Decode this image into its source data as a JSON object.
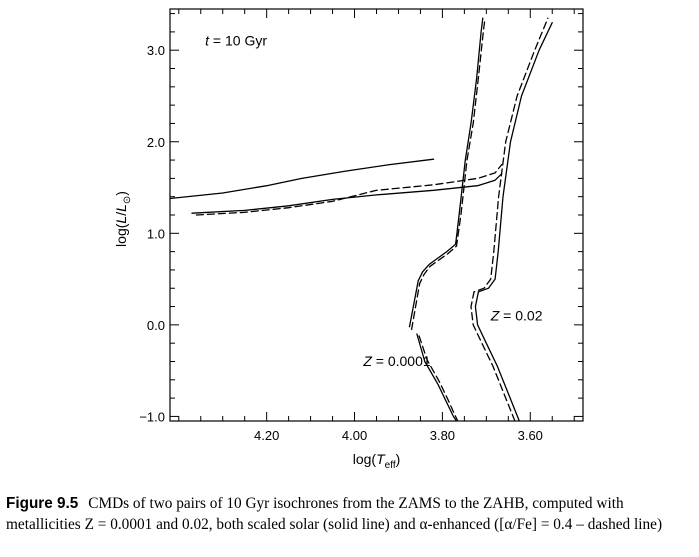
{
  "caption": {
    "label": "Figure 9.5",
    "text": "CMDs of two pairs of 10 Gyr isochrones from the ZAMS to the ZAHB, computed with metallicities Z = 0.0001 and 0.02, both scaled solar (solid line) and α-enhanced ([α/Fe] = 0.4 – dashed line)"
  },
  "chart_data": {
    "type": "line",
    "xlabel": "log(T_eff)",
    "ylabel": "log(L/L_⊙)",
    "xlim": [
      4.42,
      3.48
    ],
    "ylim": [
      -1.05,
      3.45
    ],
    "x_reversed": true,
    "x_ticks": [
      4.2,
      4.0,
      3.8,
      3.6
    ],
    "x_tick_labels": [
      "4.20",
      "4.00",
      "3.80",
      "3.60"
    ],
    "y_ticks": [
      -1.0,
      0.0,
      1.0,
      2.0,
      3.0
    ],
    "y_tick_labels": [
      "−1.0",
      "0.0",
      "1.0",
      "2.0",
      "3.0"
    ],
    "x_minor_step": 0.05,
    "y_minor_step": 0.2,
    "annotations": [
      {
        "text_parts": [
          {
            "t": "t",
            "italic": true
          },
          {
            "t": " = 10 Gyr"
          }
        ],
        "x": 4.34,
        "y": 3.05
      },
      {
        "text_parts": [
          {
            "t": "Z",
            "italic": true
          },
          {
            "t": " = 0.02"
          }
        ],
        "x": 3.69,
        "y": 0.05
      },
      {
        "text_parts": [
          {
            "t": "Z",
            "italic": true
          },
          {
            "t": " = 0.0001"
          }
        ],
        "x": 3.98,
        "y": -0.45
      }
    ],
    "series": [
      {
        "style": "solid",
        "color": "#000000",
        "points": [
          [
            3.875,
            -0.02
          ],
          [
            3.855,
            0.48
          ],
          [
            3.845,
            0.58
          ],
          [
            3.83,
            0.66
          ],
          [
            3.79,
            0.8
          ],
          [
            3.77,
            0.88
          ],
          [
            3.762,
            1.2
          ],
          [
            3.748,
            1.8
          ],
          [
            3.735,
            2.2
          ],
          [
            3.722,
            2.7
          ],
          [
            3.712,
            3.2
          ],
          [
            3.708,
            3.35
          ]
        ]
      },
      {
        "style": "dashed",
        "color": "#000000",
        "points": [
          [
            3.87,
            -0.05
          ],
          [
            3.852,
            0.45
          ],
          [
            3.842,
            0.55
          ],
          [
            3.828,
            0.64
          ],
          [
            3.787,
            0.78
          ],
          [
            3.768,
            0.86
          ],
          [
            3.758,
            1.2
          ],
          [
            3.744,
            1.8
          ],
          [
            3.73,
            2.2
          ],
          [
            3.718,
            2.7
          ],
          [
            3.707,
            3.2
          ],
          [
            3.703,
            3.35
          ]
        ]
      },
      {
        "style": "solid",
        "color": "#000000",
        "points": [
          [
            3.858,
            -0.1
          ],
          [
            3.84,
            -0.4
          ],
          [
            3.81,
            -0.65
          ],
          [
            3.79,
            -0.85
          ],
          [
            3.775,
            -1.0
          ],
          [
            3.768,
            -1.05
          ]
        ]
      },
      {
        "style": "dashed",
        "color": "#000000",
        "points": [
          [
            3.853,
            -0.12
          ],
          [
            3.835,
            -0.38
          ],
          [
            3.807,
            -0.62
          ],
          [
            3.787,
            -0.82
          ],
          [
            3.772,
            -0.98
          ],
          [
            3.765,
            -1.05
          ]
        ]
      },
      {
        "style": "solid",
        "color": "#000000",
        "points": [
          [
            4.42,
            1.38
          ],
          [
            4.3,
            1.44
          ],
          [
            4.2,
            1.52
          ],
          [
            4.12,
            1.6
          ],
          [
            4.02,
            1.68
          ],
          [
            3.92,
            1.75
          ],
          [
            3.82,
            1.81
          ]
        ]
      },
      {
        "style": "solid",
        "color": "#000000",
        "points": [
          [
            4.37,
            1.22
          ],
          [
            4.25,
            1.25
          ],
          [
            4.15,
            1.3
          ],
          [
            4.05,
            1.37
          ],
          [
            3.95,
            1.42
          ],
          [
            3.82,
            1.47
          ],
          [
            3.72,
            1.52
          ],
          [
            3.68,
            1.58
          ],
          [
            3.665,
            1.65
          ]
        ]
      },
      {
        "style": "dashed",
        "color": "#000000",
        "points": [
          [
            4.36,
            1.2
          ],
          [
            4.25,
            1.23
          ],
          [
            4.15,
            1.28
          ],
          [
            4.05,
            1.35
          ],
          [
            3.95,
            1.47
          ],
          [
            3.82,
            1.53
          ],
          [
            3.72,
            1.6
          ],
          [
            3.68,
            1.66
          ],
          [
            3.665,
            1.75
          ]
        ]
      },
      {
        "style": "solid",
        "color": "#000000",
        "points": [
          [
            3.625,
            -1.05
          ],
          [
            3.65,
            -0.75
          ],
          [
            3.675,
            -0.45
          ],
          [
            3.7,
            -0.2
          ],
          [
            3.72,
            0.0
          ],
          [
            3.725,
            0.2
          ],
          [
            3.718,
            0.36
          ],
          [
            3.695,
            0.4
          ],
          [
            3.68,
            0.5
          ],
          [
            3.673,
            0.8
          ],
          [
            3.662,
            1.4
          ],
          [
            3.645,
            2.0
          ],
          [
            3.62,
            2.5
          ],
          [
            3.58,
            3.0
          ],
          [
            3.55,
            3.3
          ]
        ]
      },
      {
        "style": "dashed",
        "color": "#000000",
        "points": [
          [
            3.635,
            -1.05
          ],
          [
            3.66,
            -0.75
          ],
          [
            3.685,
            -0.45
          ],
          [
            3.71,
            -0.2
          ],
          [
            3.73,
            0.0
          ],
          [
            3.735,
            0.2
          ],
          [
            3.728,
            0.36
          ],
          [
            3.705,
            0.4
          ],
          [
            3.69,
            0.5
          ],
          [
            3.683,
            0.8
          ],
          [
            3.672,
            1.4
          ],
          [
            3.656,
            2.0
          ],
          [
            3.63,
            2.5
          ],
          [
            3.59,
            3.0
          ],
          [
            3.56,
            3.35
          ]
        ]
      }
    ]
  }
}
